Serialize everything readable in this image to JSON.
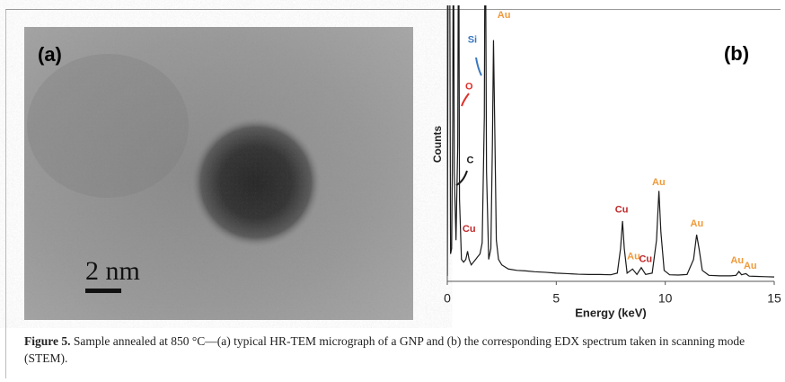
{
  "panel_a": {
    "label": "(a)",
    "scale_bar": "2 nm"
  },
  "chart_data": {
    "type": "line",
    "panel_label": "(b)",
    "x_label": "Energy (keV)",
    "y_label": "Counts",
    "x": [
      0,
      0.05,
      0.1,
      0.15,
      0.2,
      0.25,
      0.28,
      0.32,
      0.4,
      0.48,
      0.52,
      0.56,
      0.65,
      0.75,
      0.85,
      0.93,
      1.0,
      1.1,
      1.2,
      1.3,
      1.4,
      1.5,
      1.6,
      1.7,
      1.74,
      1.8,
      1.9,
      2.0,
      2.07,
      2.12,
      2.18,
      2.25,
      2.35,
      2.5,
      2.8,
      3.2,
      3.6,
      4.0,
      4.5,
      5.0,
      5.5,
      6.0,
      6.5,
      7.0,
      7.5,
      7.8,
      7.95,
      8.04,
      8.12,
      8.25,
      8.5,
      8.7,
      8.9,
      9.1,
      9.4,
      9.6,
      9.71,
      9.8,
      9.95,
      10.2,
      10.6,
      11.0,
      11.3,
      11.44,
      11.55,
      11.7,
      12.0,
      12.5,
      13.0,
      13.25,
      13.38,
      13.5,
      13.7,
      13.85,
      14.2,
      14.6,
      15.0
    ],
    "series": [
      {
        "color": "#1a1a1a",
        "values": [
          2,
          150,
          150,
          10,
          12,
          60,
          150,
          40,
          15,
          50,
          150,
          30,
          8,
          7,
          8,
          11,
          8,
          6,
          7,
          8,
          9,
          10,
          14,
          60,
          150,
          40,
          8,
          12,
          50,
          88,
          55,
          15,
          8,
          6,
          4.5,
          4,
          3.8,
          3.5,
          3.3,
          3,
          2.8,
          2.6,
          2.5,
          2.5,
          2.4,
          3,
          12,
          22,
          12,
          3,
          4.5,
          2.5,
          5,
          2.5,
          3,
          15,
          33,
          18,
          4,
          2.4,
          2.3,
          2.5,
          8,
          17,
          12,
          4,
          2.2,
          2,
          2,
          2.2,
          3.6,
          2.4,
          2.8,
          1.9,
          1.8,
          1.7,
          1.6
        ]
      }
    ],
    "xlim": [
      0,
      15
    ],
    "xticks": [
      0,
      5,
      10,
      15
    ],
    "ylim": [
      0,
      100
    ],
    "annotations": [
      {
        "text": "Si",
        "x": 1.15,
        "y": 88,
        "color": "#3a78c0"
      },
      {
        "text": "O",
        "x": 1.0,
        "y": 71,
        "color": "#e0302a"
      },
      {
        "text": "C",
        "x": 1.05,
        "y": 44,
        "color": "#1a1a1a"
      },
      {
        "text": "Au",
        "x": 2.6,
        "y": 97,
        "color": "#f09a3a"
      },
      {
        "text": "Cu",
        "x": 1.0,
        "y": 19,
        "color": "#c0282a"
      },
      {
        "text": "Cu",
        "x": 8.0,
        "y": 26,
        "color": "#c0282a"
      },
      {
        "text": "Au",
        "x": 8.55,
        "y": 9,
        "color": "#f09a3a"
      },
      {
        "text": "Cu",
        "x": 9.1,
        "y": 8,
        "color": "#c0282a"
      },
      {
        "text": "Au",
        "x": 9.7,
        "y": 36,
        "color": "#f09a3a"
      },
      {
        "text": "Au",
        "x": 11.45,
        "y": 21,
        "color": "#f09a3a"
      },
      {
        "text": "Au",
        "x": 13.3,
        "y": 7.5,
        "color": "#f09a3a"
      },
      {
        "text": "Au",
        "x": 13.9,
        "y": 5.5,
        "color": "#f09a3a"
      }
    ]
  },
  "caption": {
    "label": "Figure 5.",
    "text": "Sample annealed at 850 °C—(a) typical HR-TEM micrograph of a GNP and (b) the corresponding EDX spectrum taken in scanning mode (STEM)."
  }
}
